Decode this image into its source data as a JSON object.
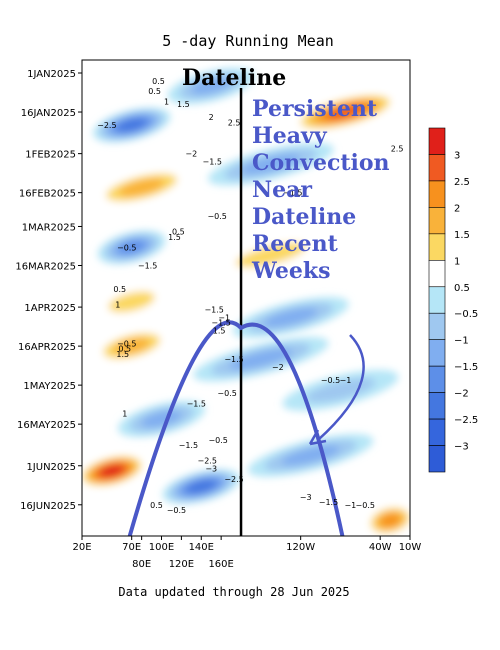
{
  "chart_data": {
    "type": "heatmap",
    "title": "5 -day Running Mean",
    "x_axis": {
      "range": [
        20,
        350
      ],
      "ticks_top_row": [
        {
          "value": 20,
          "label": "20E"
        },
        {
          "value": 70,
          "label": "70E"
        },
        {
          "value": 100,
          "label": "100E"
        },
        {
          "value": 140,
          "label": "140E"
        },
        {
          "value": 240,
          "label": "120W"
        },
        {
          "value": 320,
          "label": "40W"
        },
        {
          "value": 350,
          "label": "10W"
        }
      ],
      "ticks_bottom_row": [
        {
          "value": 80,
          "label": "80E"
        },
        {
          "value": 120,
          "label": "120E"
        },
        {
          "value": 160,
          "label": "160E"
        }
      ]
    },
    "y_axis": {
      "range": [
        "2024-12-27",
        "2025-06-28"
      ],
      "ticks": [
        {
          "value": "2025-01-01",
          "label": "1JAN2025"
        },
        {
          "value": "2025-01-16",
          "label": "16JAN2025"
        },
        {
          "value": "2025-02-01",
          "label": "1FEB2025"
        },
        {
          "value": "2025-02-16",
          "label": "16FEB2025"
        },
        {
          "value": "2025-03-01",
          "label": "1MAR2025"
        },
        {
          "value": "2025-03-16",
          "label": "16MAR2025"
        },
        {
          "value": "2025-04-01",
          "label": "1APR2025"
        },
        {
          "value": "2025-04-16",
          "label": "16APR2025"
        },
        {
          "value": "2025-05-01",
          "label": "1MAY2025"
        },
        {
          "value": "2025-05-16",
          "label": "16MAY2025"
        },
        {
          "value": "2025-06-01",
          "label": "1JUN2025"
        },
        {
          "value": "2025-06-16",
          "label": "16JUN2025"
        }
      ]
    },
    "colorbar": {
      "levels": [
        "3",
        "2.5",
        "2",
        "1.5",
        "1",
        "0.5",
        "−0.5",
        "−1",
        "−1.5",
        "−2",
        "−2.5",
        "−3"
      ],
      "colors": [
        "#e0201a",
        "#f05a22",
        "#f7911e",
        "#f9b23a",
        "#fbd862",
        "#ffffff",
        "#b5e6f7",
        "#9fc8f0",
        "#80aef0",
        "#5d8fe8",
        "#4477e0",
        "#3566dd",
        "#2e5cd7"
      ]
    },
    "bands": [
      {
        "date": "2025-01-06",
        "center_lon": 150,
        "width_lon": 90,
        "value": -1.5
      },
      {
        "date": "2025-01-16",
        "center_lon": 285,
        "width_lon": 110,
        "value": 2.5
      },
      {
        "date": "2025-01-21",
        "center_lon": 70,
        "width_lon": 80,
        "value": -2.5
      },
      {
        "date": "2025-02-05",
        "center_lon": 210,
        "width_lon": 130,
        "value": -1.5
      },
      {
        "date": "2025-02-14",
        "center_lon": 80,
        "width_lon": 100,
        "value": 1.5
      },
      {
        "date": "2025-03-09",
        "center_lon": 70,
        "width_lon": 70,
        "value": -2
      },
      {
        "date": "2025-03-12",
        "center_lon": 210,
        "width_lon": 120,
        "value": 1
      },
      {
        "date": "2025-03-30",
        "center_lon": 70,
        "width_lon": 80,
        "value": 1
      },
      {
        "date": "2025-04-05",
        "center_lon": 230,
        "width_lon": 120,
        "value": -1.5
      },
      {
        "date": "2025-04-16",
        "center_lon": 70,
        "width_lon": 80,
        "value": 1.5
      },
      {
        "date": "2025-04-21",
        "center_lon": 200,
        "width_lon": 140,
        "value": -1.5
      },
      {
        "date": "2025-05-03",
        "center_lon": 280,
        "width_lon": 120,
        "value": -1
      },
      {
        "date": "2025-05-14",
        "center_lon": 100,
        "width_lon": 90,
        "value": -1.5
      },
      {
        "date": "2025-05-28",
        "center_lon": 250,
        "width_lon": 130,
        "value": -1.5
      },
      {
        "date": "2025-06-03",
        "center_lon": 50,
        "width_lon": 70,
        "value": 3
      },
      {
        "date": "2025-06-09",
        "center_lon": 140,
        "width_lon": 80,
        "value": -2.5
      },
      {
        "date": "2025-06-22",
        "center_lon": 330,
        "width_lon": 50,
        "value": 2
      }
    ],
    "contour_labels": [
      {
        "date": "2025-01-04",
        "lon": 97,
        "text": "0.5"
      },
      {
        "date": "2025-01-08",
        "lon": 93,
        "text": "0.5"
      },
      {
        "date": "2025-01-12",
        "lon": 105,
        "text": "1"
      },
      {
        "date": "2025-01-13",
        "lon": 122,
        "text": "1.5"
      },
      {
        "date": "2025-01-18",
        "lon": 150,
        "text": "2"
      },
      {
        "date": "2025-01-20",
        "lon": 173,
        "text": "2.5"
      },
      {
        "date": "2025-01-21",
        "lon": 45,
        "text": "−2.5"
      },
      {
        "date": "2025-01-30",
        "lon": 337,
        "text": "2.5"
      },
      {
        "date": "2025-02-01",
        "lon": 130,
        "text": "−2"
      },
      {
        "date": "2025-02-04",
        "lon": 151,
        "text": "−1.5"
      },
      {
        "date": "2025-02-16",
        "lon": 232,
        "text": "−1.5"
      },
      {
        "date": "2025-02-25",
        "lon": 156,
        "text": "−0.5"
      },
      {
        "date": "2025-03-03",
        "lon": 117,
        "text": "0.5"
      },
      {
        "date": "2025-03-05",
        "lon": 113,
        "text": "1.5"
      },
      {
        "date": "2025-03-09",
        "lon": 65,
        "text": "−0.5"
      },
      {
        "date": "2025-03-16",
        "lon": 86,
        "text": "−1.5"
      },
      {
        "date": "2025-03-25",
        "lon": 58,
        "text": "0.5"
      },
      {
        "date": "2025-03-31",
        "lon": 56,
        "text": "1"
      },
      {
        "date": "2025-04-02",
        "lon": 153,
        "text": "−1.5"
      },
      {
        "date": "2025-04-05",
        "lon": 163,
        "text": "−1"
      },
      {
        "date": "2025-04-07",
        "lon": 160,
        "text": "−1.5"
      },
      {
        "date": "2025-04-10",
        "lon": 158,
        "text": "1.5"
      },
      {
        "date": "2025-04-15",
        "lon": 65,
        "text": "−0.5"
      },
      {
        "date": "2025-04-17",
        "lon": 63,
        "text": "0.5"
      },
      {
        "date": "2025-04-19",
        "lon": 61,
        "text": "1.5"
      },
      {
        "date": "2025-04-21",
        "lon": 173,
        "text": "−1.5"
      },
      {
        "date": "2025-04-24",
        "lon": 217,
        "text": "−2"
      },
      {
        "date": "2025-04-29",
        "lon": 270,
        "text": "−0.5"
      },
      {
        "date": "2025-04-29",
        "lon": 285,
        "text": "−1"
      },
      {
        "date": "2025-05-04",
        "lon": 166,
        "text": "−0.5"
      },
      {
        "date": "2025-05-08",
        "lon": 135,
        "text": "−1.5"
      },
      {
        "date": "2025-05-12",
        "lon": 63,
        "text": "1"
      },
      {
        "date": "2025-05-22",
        "lon": 157,
        "text": "−0.5"
      },
      {
        "date": "2025-05-24",
        "lon": 127,
        "text": "−1.5"
      },
      {
        "date": "2025-05-30",
        "lon": 146,
        "text": "−2.5"
      },
      {
        "date": "2025-06-02",
        "lon": 150,
        "text": "−3"
      },
      {
        "date": "2025-06-06",
        "lon": 173,
        "text": "−2.5"
      },
      {
        "date": "2025-06-13",
        "lon": 245,
        "text": "−3"
      },
      {
        "date": "2025-06-15",
        "lon": 268,
        "text": "−1.5"
      },
      {
        "date": "2025-06-16",
        "lon": 290,
        "text": "−1"
      },
      {
        "date": "2025-06-16",
        "lon": 305,
        "text": "−0.5"
      },
      {
        "date": "2025-06-16",
        "lon": 95,
        "text": "0.5"
      },
      {
        "date": "2025-06-18",
        "lon": 115,
        "text": "−0.5"
      }
    ],
    "annotations": {
      "dateline_label": "Dateline",
      "dateline_lon": 180,
      "note_lines": [
        "Persistent",
        "Heavy",
        "Convection",
        "Near",
        "Dateline",
        "Recent",
        "Weeks"
      ],
      "peak": {
        "date": "2025-04-09",
        "lon": 180
      },
      "arch_left_base_lon": 68,
      "arch_right_base_lon": 282
    }
  },
  "footer": {
    "text": "Data updated through 28 Jun 2025"
  }
}
